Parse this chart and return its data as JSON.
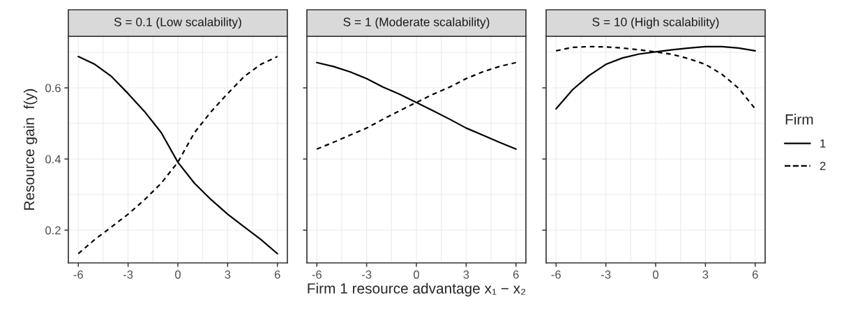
{
  "chart_data": [
    {
      "type": "line",
      "title": "S = 0.1 (Low scalability)",
      "ylabel": "Resource gain  f(y)",
      "legend_title": "Firm",
      "x": [
        -6,
        -5,
        -4,
        -3,
        -2,
        -1,
        0,
        1,
        2,
        3,
        4,
        5,
        6
      ],
      "xlim": [
        -6.6,
        6.6
      ],
      "xticks": [
        -6,
        -3,
        0,
        3,
        6
      ],
      "ylim": [
        0.108,
        0.745
      ],
      "yticks": [
        0.2,
        0.4,
        0.6
      ],
      "grid": true,
      "legend": "right",
      "series": [
        {
          "name": "1",
          "color": "#000000",
          "line_style": "solid",
          "values": [
            0.688,
            0.666,
            0.632,
            0.584,
            0.533,
            0.474,
            0.391,
            0.332,
            0.286,
            0.245,
            0.209,
            0.174,
            0.134
          ]
        },
        {
          "name": "2",
          "color": "#000000",
          "line_style": "dashed",
          "values": [
            0.134,
            0.174,
            0.209,
            0.245,
            0.286,
            0.332,
            0.391,
            0.474,
            0.533,
            0.584,
            0.632,
            0.666,
            0.688
          ]
        }
      ]
    },
    {
      "type": "line",
      "title": "S = 1 (Moderate scalability)",
      "xlabel": "Firm 1 resource advantage x₁ − x₂",
      "x": [
        -6,
        -5,
        -4,
        -3,
        -2,
        -1,
        0,
        1,
        2,
        3,
        4,
        5,
        6
      ],
      "xlim": [
        -6.6,
        6.6
      ],
      "xticks": [
        -6,
        -3,
        0,
        3,
        6
      ],
      "ylim": [
        0.108,
        0.745
      ],
      "yticks": [
        0.2,
        0.4,
        0.6
      ],
      "grid": true,
      "legend": false,
      "tick_labels": "x",
      "series": [
        {
          "name": "1",
          "color": "#000000",
          "line_style": "solid",
          "values": [
            0.671,
            0.66,
            0.645,
            0.626,
            0.602,
            0.582,
            0.559,
            0.536,
            0.512,
            0.487,
            0.467,
            0.447,
            0.428
          ]
        },
        {
          "name": "2",
          "color": "#000000",
          "line_style": "dashed",
          "values": [
            0.428,
            0.447,
            0.467,
            0.487,
            0.512,
            0.536,
            0.559,
            0.582,
            0.602,
            0.626,
            0.645,
            0.66,
            0.671
          ]
        }
      ]
    },
    {
      "type": "line",
      "title": "S = 10 (High scalability)",
      "x": [
        -6,
        -5,
        -4,
        -3,
        -2,
        -1,
        0,
        1,
        2,
        3,
        4,
        5,
        6
      ],
      "xlim": [
        -6.6,
        6.6
      ],
      "xticks": [
        -6,
        -3,
        0,
        3,
        6
      ],
      "ylim": [
        0.108,
        0.745
      ],
      "yticks": [
        0.2,
        0.4,
        0.6
      ],
      "grid": true,
      "legend": false,
      "tick_labels": "x",
      "series": [
        {
          "name": "1",
          "color": "#000000",
          "line_style": "solid",
          "values": [
            0.541,
            0.595,
            0.635,
            0.666,
            0.684,
            0.695,
            0.701,
            0.707,
            0.712,
            0.716,
            0.716,
            0.712,
            0.704
          ]
        },
        {
          "name": "2",
          "color": "#000000",
          "line_style": "dashed",
          "values": [
            0.704,
            0.714,
            0.716,
            0.715,
            0.712,
            0.707,
            0.701,
            0.694,
            0.682,
            0.666,
            0.638,
            0.599,
            0.541
          ]
        }
      ]
    }
  ]
}
